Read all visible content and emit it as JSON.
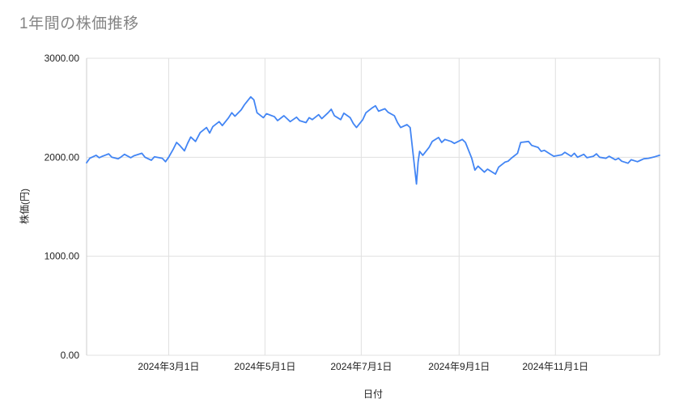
{
  "chart_data": {
    "type": "line",
    "title": "1年間の株価推移",
    "xlabel": "日付",
    "ylabel": "株価(円)",
    "ylim": [
      0,
      3000
    ],
    "y_ticks": [
      0,
      1000,
      2000,
      3000
    ],
    "y_tick_labels": [
      "0.00",
      "1000.00",
      "2000.00",
      "3000.00"
    ],
    "x_ticks": [
      "2024-03-01",
      "2024-05-01",
      "2024-07-01",
      "2024-09-01",
      "2024-11-01"
    ],
    "x_tick_labels": [
      "2024年3月1日",
      "2024年5月1日",
      "2024年7月1日",
      "2024年9月1日",
      "2024年11月1日"
    ],
    "x_range": [
      "2024-01-09",
      "2025-01-06"
    ],
    "grid_on": true,
    "legend": "none",
    "line_color": "#4285f4",
    "grid_color": "#e0e0e0",
    "axis_color": "#cccccc",
    "tick_color": "#222222",
    "title_color": "#848484",
    "series": [
      {
        "name": "株価",
        "points": [
          [
            "2024-01-09",
            1945
          ],
          [
            "2024-01-11",
            1990
          ],
          [
            "2024-01-15",
            2020
          ],
          [
            "2024-01-17",
            1995
          ],
          [
            "2024-01-19",
            2010
          ],
          [
            "2024-01-23",
            2035
          ],
          [
            "2024-01-25",
            2000
          ],
          [
            "2024-01-29",
            1985
          ],
          [
            "2024-01-31",
            2005
          ],
          [
            "2024-02-02",
            2030
          ],
          [
            "2024-02-06",
            1995
          ],
          [
            "2024-02-08",
            2015
          ],
          [
            "2024-02-13",
            2040
          ],
          [
            "2024-02-15",
            2000
          ],
          [
            "2024-02-19",
            1970
          ],
          [
            "2024-02-21",
            2005
          ],
          [
            "2024-02-26",
            1990
          ],
          [
            "2024-02-28",
            1955
          ],
          [
            "2024-03-01",
            2000
          ],
          [
            "2024-03-04",
            2085
          ],
          [
            "2024-03-06",
            2150
          ],
          [
            "2024-03-08",
            2120
          ],
          [
            "2024-03-11",
            2065
          ],
          [
            "2024-03-13",
            2140
          ],
          [
            "2024-03-15",
            2205
          ],
          [
            "2024-03-18",
            2160
          ],
          [
            "2024-03-21",
            2250
          ],
          [
            "2024-03-25",
            2300
          ],
          [
            "2024-03-27",
            2245
          ],
          [
            "2024-03-29",
            2310
          ],
          [
            "2024-04-02",
            2360
          ],
          [
            "2024-04-04",
            2320
          ],
          [
            "2024-04-08",
            2400
          ],
          [
            "2024-04-10",
            2450
          ],
          [
            "2024-04-12",
            2415
          ],
          [
            "2024-04-16",
            2480
          ],
          [
            "2024-04-18",
            2530
          ],
          [
            "2024-04-22",
            2610
          ],
          [
            "2024-04-24",
            2580
          ],
          [
            "2024-04-26",
            2450
          ],
          [
            "2024-04-30",
            2400
          ],
          [
            "2024-05-02",
            2440
          ],
          [
            "2024-05-07",
            2410
          ],
          [
            "2024-05-09",
            2370
          ],
          [
            "2024-05-13",
            2420
          ],
          [
            "2024-05-15",
            2390
          ],
          [
            "2024-05-17",
            2360
          ],
          [
            "2024-05-21",
            2405
          ],
          [
            "2024-05-23",
            2370
          ],
          [
            "2024-05-27",
            2350
          ],
          [
            "2024-05-29",
            2400
          ],
          [
            "2024-05-31",
            2380
          ],
          [
            "2024-06-04",
            2430
          ],
          [
            "2024-06-06",
            2390
          ],
          [
            "2024-06-10",
            2450
          ],
          [
            "2024-06-12",
            2485
          ],
          [
            "2024-06-14",
            2420
          ],
          [
            "2024-06-18",
            2380
          ],
          [
            "2024-06-20",
            2445
          ],
          [
            "2024-06-24",
            2400
          ],
          [
            "2024-06-26",
            2340
          ],
          [
            "2024-06-28",
            2300
          ],
          [
            "2024-07-02",
            2380
          ],
          [
            "2024-07-04",
            2450
          ],
          [
            "2024-07-08",
            2500
          ],
          [
            "2024-07-10",
            2520
          ],
          [
            "2024-07-12",
            2465
          ],
          [
            "2024-07-16",
            2490
          ],
          [
            "2024-07-18",
            2455
          ],
          [
            "2024-07-22",
            2420
          ],
          [
            "2024-07-24",
            2350
          ],
          [
            "2024-07-26",
            2300
          ],
          [
            "2024-07-30",
            2330
          ],
          [
            "2024-08-01",
            2300
          ],
          [
            "2024-08-05",
            1730
          ],
          [
            "2024-08-06",
            1950
          ],
          [
            "2024-08-07",
            2060
          ],
          [
            "2024-08-09",
            2020
          ],
          [
            "2024-08-13",
            2100
          ],
          [
            "2024-08-15",
            2160
          ],
          [
            "2024-08-19",
            2200
          ],
          [
            "2024-08-21",
            2150
          ],
          [
            "2024-08-23",
            2180
          ],
          [
            "2024-08-27",
            2160
          ],
          [
            "2024-08-29",
            2140
          ],
          [
            "2024-09-03",
            2180
          ],
          [
            "2024-09-05",
            2150
          ],
          [
            "2024-09-09",
            1990
          ],
          [
            "2024-09-11",
            1870
          ],
          [
            "2024-09-13",
            1910
          ],
          [
            "2024-09-17",
            1850
          ],
          [
            "2024-09-19",
            1880
          ],
          [
            "2024-09-24",
            1830
          ],
          [
            "2024-09-26",
            1900
          ],
          [
            "2024-09-30",
            1950
          ],
          [
            "2024-10-02",
            1960
          ],
          [
            "2024-10-04",
            1990
          ],
          [
            "2024-10-08",
            2040
          ],
          [
            "2024-10-10",
            2150
          ],
          [
            "2024-10-15",
            2160
          ],
          [
            "2024-10-17",
            2120
          ],
          [
            "2024-10-21",
            2100
          ],
          [
            "2024-10-23",
            2060
          ],
          [
            "2024-10-25",
            2070
          ],
          [
            "2024-10-29",
            2030
          ],
          [
            "2024-10-31",
            2010
          ],
          [
            "2024-11-05",
            2025
          ],
          [
            "2024-11-07",
            2050
          ],
          [
            "2024-11-11",
            2010
          ],
          [
            "2024-11-13",
            2040
          ],
          [
            "2024-11-15",
            2000
          ],
          [
            "2024-11-19",
            2030
          ],
          [
            "2024-11-21",
            1995
          ],
          [
            "2024-11-25",
            2010
          ],
          [
            "2024-11-27",
            2035
          ],
          [
            "2024-11-29",
            2000
          ],
          [
            "2024-12-03",
            1990
          ],
          [
            "2024-12-05",
            2010
          ],
          [
            "2024-12-09",
            1975
          ],
          [
            "2024-12-11",
            1990
          ],
          [
            "2024-12-13",
            1960
          ],
          [
            "2024-12-17",
            1940
          ],
          [
            "2024-12-19",
            1975
          ],
          [
            "2024-12-23",
            1955
          ],
          [
            "2024-12-25",
            1970
          ],
          [
            "2024-12-27",
            1985
          ],
          [
            "2024-12-30",
            1990
          ],
          [
            "2025-01-03",
            2005
          ],
          [
            "2025-01-06",
            2020
          ]
        ]
      }
    ]
  }
}
